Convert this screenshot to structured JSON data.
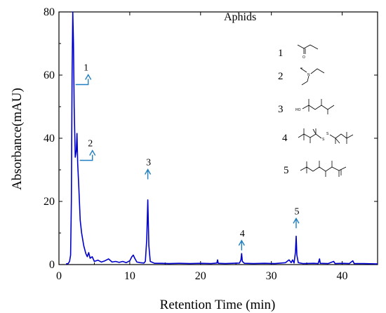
{
  "chart_data": {
    "type": "line",
    "title": "Aphids",
    "xlabel": "Retention Time (min)",
    "ylabel": "Absorbance(mAU)",
    "xlim": [
      0,
      45
    ],
    "ylim": [
      0,
      80
    ],
    "x_ticks": [
      0,
      10,
      20,
      30,
      40
    ],
    "y_ticks": [
      0,
      20,
      40,
      60,
      80
    ],
    "series": [
      {
        "color": "#0000cc",
        "points": [
          [
            1.0,
            0.2
          ],
          [
            1.3,
            0.3
          ],
          [
            1.5,
            1.0
          ],
          [
            1.65,
            3.0
          ],
          [
            1.75,
            20.0
          ],
          [
            1.85,
            60.0
          ],
          [
            1.95,
            80.0
          ],
          [
            2.05,
            70.0
          ],
          [
            2.15,
            50.0
          ],
          [
            2.3,
            34.0
          ],
          [
            2.45,
            36.0
          ],
          [
            2.55,
            41.5
          ],
          [
            2.65,
            32.0
          ],
          [
            2.8,
            25.0
          ],
          [
            3.0,
            14.0
          ],
          [
            3.2,
            10.0
          ],
          [
            3.5,
            6.0
          ],
          [
            3.8,
            3.5
          ],
          [
            4.0,
            2.5
          ],
          [
            4.2,
            3.8
          ],
          [
            4.4,
            2.0
          ],
          [
            4.7,
            2.5
          ],
          [
            5.0,
            1.0
          ],
          [
            5.5,
            1.4
          ],
          [
            6.0,
            0.8
          ],
          [
            6.5,
            1.2
          ],
          [
            7.0,
            1.8
          ],
          [
            7.5,
            0.8
          ],
          [
            8.0,
            1.0
          ],
          [
            8.5,
            0.7
          ],
          [
            9.0,
            1.0
          ],
          [
            9.5,
            0.6
          ],
          [
            10.0,
            1.2
          ],
          [
            10.3,
            2.5
          ],
          [
            10.5,
            3.0
          ],
          [
            10.7,
            2.0
          ],
          [
            11.0,
            0.8
          ],
          [
            11.5,
            0.6
          ],
          [
            12.0,
            0.5
          ],
          [
            12.2,
            1.0
          ],
          [
            12.4,
            8.0
          ],
          [
            12.55,
            20.5
          ],
          [
            12.7,
            6.0
          ],
          [
            12.9,
            1.0
          ],
          [
            13.5,
            0.4
          ],
          [
            14.5,
            0.4
          ],
          [
            15.5,
            0.3
          ],
          [
            17.0,
            0.4
          ],
          [
            18.5,
            0.3
          ],
          [
            20.0,
            0.4
          ],
          [
            21.5,
            0.3
          ],
          [
            22.3,
            0.5
          ],
          [
            22.4,
            1.5
          ],
          [
            22.5,
            0.4
          ],
          [
            23.5,
            0.3
          ],
          [
            24.5,
            0.4
          ],
          [
            25.5,
            0.5
          ],
          [
            25.7,
            1.5
          ],
          [
            25.8,
            3.5
          ],
          [
            25.9,
            1.0
          ],
          [
            26.2,
            0.4
          ],
          [
            27.5,
            0.3
          ],
          [
            29.0,
            0.4
          ],
          [
            30.5,
            0.3
          ],
          [
            32.0,
            0.6
          ],
          [
            32.5,
            1.5
          ],
          [
            32.8,
            0.6
          ],
          [
            33.0,
            1.5
          ],
          [
            33.2,
            0.5
          ],
          [
            33.4,
            4.0
          ],
          [
            33.5,
            9.0
          ],
          [
            33.6,
            3.0
          ],
          [
            33.8,
            0.6
          ],
          [
            34.5,
            0.3
          ],
          [
            36.0,
            0.4
          ],
          [
            36.6,
            0.3
          ],
          [
            36.8,
            1.8
          ],
          [
            36.9,
            0.4
          ],
          [
            38.0,
            0.3
          ],
          [
            38.8,
            1.0
          ],
          [
            39.0,
            0.3
          ],
          [
            40.0,
            0.4
          ],
          [
            41.0,
            0.3
          ],
          [
            41.5,
            1.2
          ],
          [
            41.7,
            0.3
          ],
          [
            43.0,
            0.3
          ],
          [
            45.0,
            0.2
          ]
        ]
      }
    ],
    "annotations": [
      {
        "label": "1",
        "peak_x": 1.95,
        "peak_y": 57,
        "style": "elbow"
      },
      {
        "label": "2",
        "peak_x": 2.55,
        "peak_y": 33,
        "style": "elbow"
      },
      {
        "label": "3",
        "peak_x": 12.55,
        "peak_y": 27,
        "style": "straight"
      },
      {
        "label": "4",
        "peak_x": 25.8,
        "peak_y": 4.5,
        "style": "straight"
      },
      {
        "label": "5",
        "peak_x": 33.5,
        "peak_y": 11.5,
        "style": "straight"
      }
    ],
    "arrow_color": "#1f7fc0",
    "grid": false,
    "structures": [
      {
        "label": "1",
        "atom_labels": [
          "O"
        ]
      },
      {
        "label": "2",
        "atom_labels": [
          "N"
        ]
      },
      {
        "label": "3",
        "atom_labels": [
          "HO"
        ]
      },
      {
        "label": "4",
        "atom_labels": [
          "S",
          "S"
        ]
      },
      {
        "label": "5",
        "atom_labels": []
      }
    ]
  }
}
